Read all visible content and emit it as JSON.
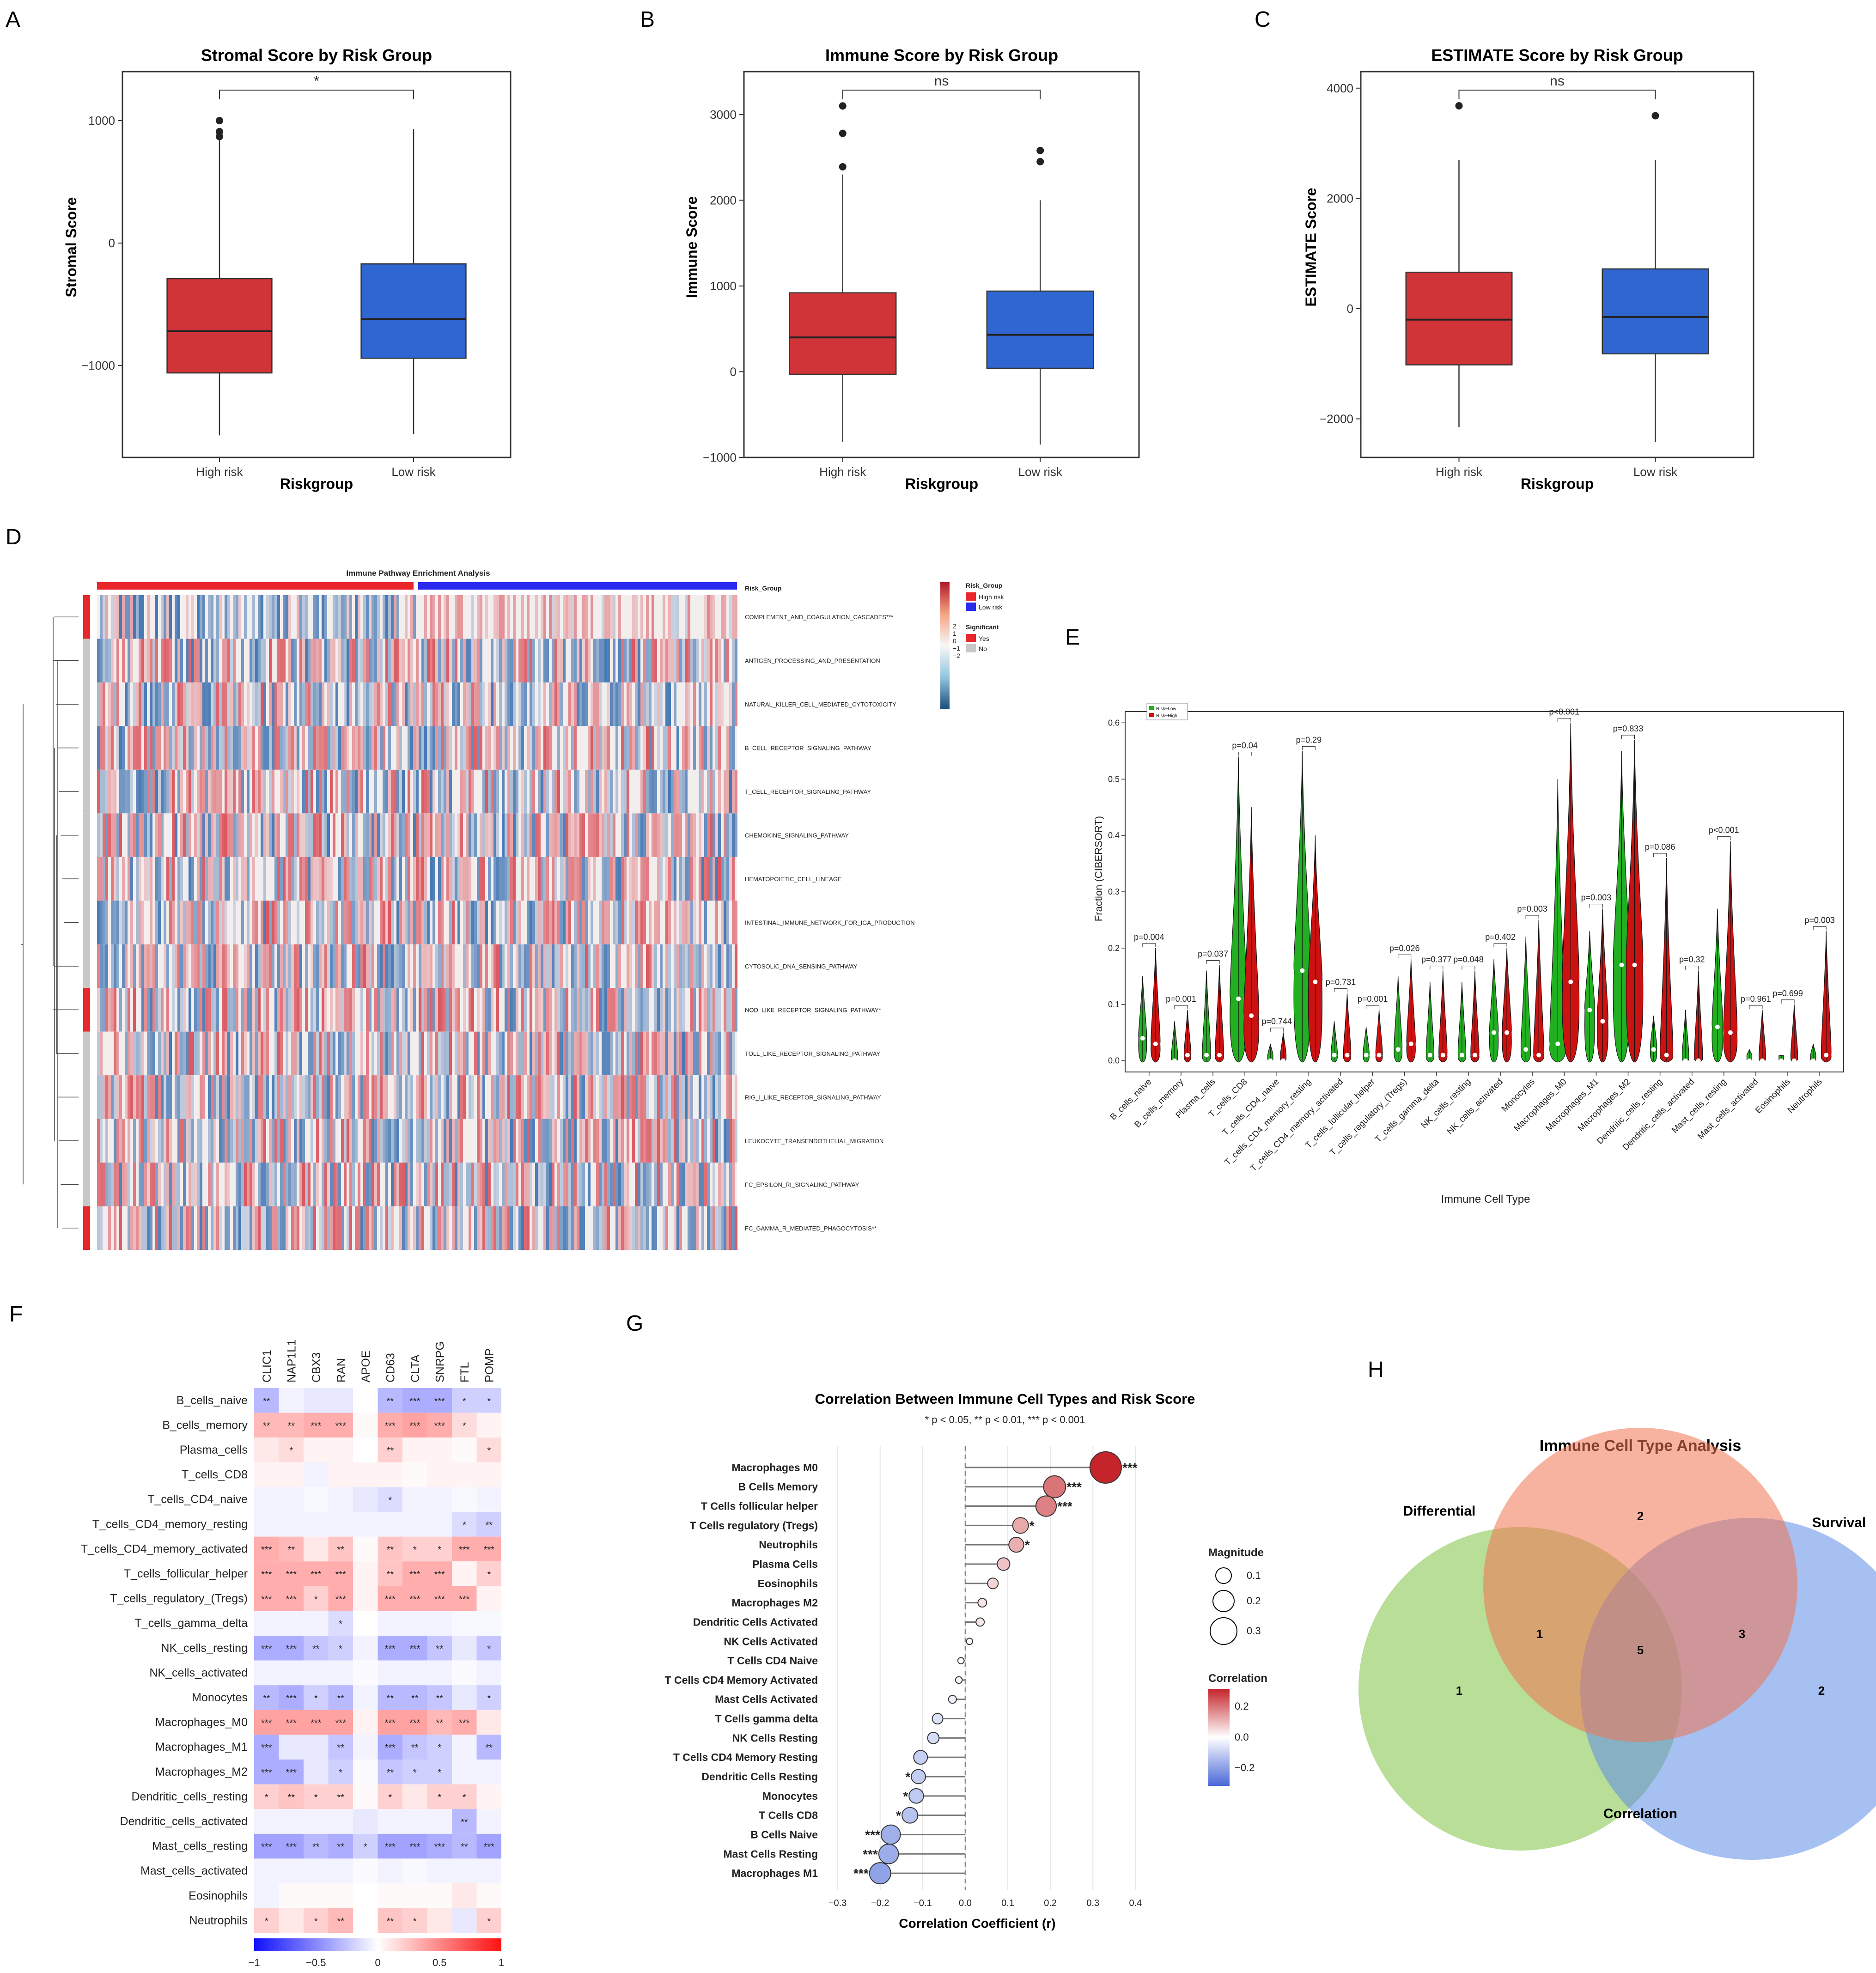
{
  "panel_letters": [
    "A",
    "B",
    "C",
    "D",
    "E",
    "F",
    "G",
    "H"
  ],
  "colors": {
    "high": "#d03438",
    "low": "#2f66d2",
    "green": "#22b022",
    "red": "#cc1111",
    "dark": "#222222"
  },
  "chart_data": [
    {
      "id": "A",
      "type": "box",
      "title": "Stromal Score by Risk Group",
      "xlabel": "Riskgroup",
      "ylabel": "Stromal Score",
      "ylim": [
        -1750,
        1400
      ],
      "yticks": [
        -1000,
        0,
        1000
      ],
      "yticklabels": [
        "−1000",
        "0",
        "1000"
      ],
      "categories": [
        "High risk",
        "Low risk"
      ],
      "boxes": [
        {
          "q1": -1060,
          "median": -720,
          "q3": -290,
          "lo": -1570,
          "hi": 920,
          "outliers": [
            1000,
            910,
            870
          ]
        },
        {
          "q1": -940,
          "median": -620,
          "q3": -170,
          "lo": -1560,
          "hi": 930,
          "outliers": []
        }
      ],
      "signif": "*"
    },
    {
      "id": "B",
      "type": "box",
      "title": "Immune Score by Risk Group",
      "xlabel": "Riskgroup",
      "ylabel": "Immune Score",
      "ylim": [
        -1000,
        3500
      ],
      "yticks": [
        -1000,
        0,
        1000,
        2000,
        3000
      ],
      "yticklabels": [
        "−1000",
        "0",
        "1000",
        "2000",
        "3000"
      ],
      "categories": [
        "High risk",
        "Low risk"
      ],
      "boxes": [
        {
          "q1": -30,
          "median": 400,
          "q3": 920,
          "lo": -820,
          "hi": 2300,
          "outliers": [
            3100,
            2780,
            2390
          ]
        },
        {
          "q1": 40,
          "median": 430,
          "q3": 940,
          "lo": -850,
          "hi": 2000,
          "outliers": [
            2580,
            2450
          ]
        }
      ],
      "signif": "ns"
    },
    {
      "id": "C",
      "type": "box",
      "title": "ESTIMATE Score by Risk Group",
      "xlabel": "Riskgroup",
      "ylabel": "ESTIMATE Score",
      "ylim": [
        -2700,
        4300
      ],
      "yticks": [
        -2000,
        0,
        2000,
        4000
      ],
      "yticklabels": [
        "−2000",
        "0",
        "2000",
        "4000"
      ],
      "categories": [
        "High risk",
        "Low risk"
      ],
      "boxes": [
        {
          "q1": -1020,
          "median": -200,
          "q3": 660,
          "lo": -2150,
          "hi": 2700,
          "outliers": [
            3680
          ]
        },
        {
          "q1": -820,
          "median": -150,
          "q3": 720,
          "lo": -2420,
          "hi": 2700,
          "outliers": [
            3500
          ]
        }
      ],
      "signif": "ns"
    },
    {
      "id": "D",
      "type": "heatmap",
      "title": "Immune Pathway Enrichment Analysis",
      "pathways": [
        "COMPLEMENT_AND_COAGULATION_CASCADES***",
        "ANTIGEN_PROCESSING_AND_PRESENTATION",
        "NATURAL_KILLER_CELL_MEDIATED_CYTOTOXICITY",
        "B_CELL_RECEPTOR_SIGNALING_PATHWAY",
        "T_CELL_RECEPTOR_SIGNALING_PATHWAY",
        "CHEMOKINE_SIGNALING_PATHWAY",
        "HEMATOPOIETIC_CELL_LINEAGE",
        "INTESTINAL_IMMUNE_NETWORK_FOR_IGA_PRODUCTION",
        "CYTOSOLIC_DNA_SENSING_PATHWAY",
        "NOD_LIKE_RECEPTOR_SIGNALING_PATHWAY*",
        "TOLL_LIKE_RECEPTOR_SIGNALING_PATHWAY",
        "RIG_I_LIKE_RECEPTOR_SIGNALING_PATHWAY",
        "LEUKOCYTE_TRANSENDOTHELIAL_MIGRATION",
        "FC_EPSILON_RI_SIGNALING_PATHWAY",
        "FC_GAMMA_R_MEDIATED_PHAGOCYTOSIS**"
      ],
      "significant": [
        true,
        false,
        false,
        false,
        false,
        false,
        false,
        false,
        false,
        true,
        false,
        false,
        false,
        false,
        true
      ],
      "annotation_label": "Risk_Group",
      "legend": {
        "risk_title": "Risk_Group",
        "risk_items": [
          "High risk",
          "Low risk"
        ],
        "scale_ticks": [
          "2",
          "1",
          "0",
          "−1",
          "−2"
        ],
        "sig_title": "Significant",
        "sig_items": [
          "Yes",
          "No"
        ]
      }
    },
    {
      "id": "E",
      "type": "violin",
      "xlabel": "Immune Cell Type",
      "ylabel": "Fraction (CIBERSORT)",
      "ylim": [
        -0.02,
        0.62
      ],
      "yticks": [
        0.0,
        0.1,
        0.2,
        0.3,
        0.4,
        0.5,
        0.6
      ],
      "yticklabels": [
        "0.0",
        "0.1",
        "0.2",
        "0.3",
        "0.4",
        "0.5",
        "0.6"
      ],
      "legend": [
        "Risk−Low",
        "Risk−High"
      ],
      "cells": [
        "B_cells_naive",
        "B_cells_memory",
        "Plasma_cells",
        "T_cells_CD8",
        "T_cells_CD4_naive",
        "T_cells_CD4_memory_resting",
        "T_cells_CD4_memory_activated",
        "T_cells_follicular_helper",
        "T_cells_regulatory_(Tregs)",
        "T_cells_gamma_delta",
        "NK_cells_resting",
        "NK_cells_activated",
        "Monocytes",
        "Macrophages_M0",
        "Macrophages_M1",
        "Macrophages_M2",
        "Dendritic_cells_resting",
        "Dendritic_cells_activated",
        "Mast_cells_resting",
        "Mast_cells_activated",
        "Eosinophils",
        "Neutrophils"
      ],
      "pvalues": [
        "p=0.004",
        "p=0.001",
        "p=0.037",
        "p=0.04",
        "p=0.744",
        "p=0.29",
        "p=0.731",
        "p=0.001",
        "p=0.026",
        "p=0.377",
        "p=0.048",
        "p=0.402",
        "p=0.003",
        "p<0.001",
        "p=0.003",
        "p=0.833",
        "p=0.086",
        "p=0.32",
        "p<0.001",
        "p=0.961",
        "p=0.699",
        "p=0.003"
      ],
      "low_max": [
        0.15,
        0.07,
        0.16,
        0.54,
        0.03,
        0.55,
        0.07,
        0.06,
        0.15,
        0.14,
        0.14,
        0.18,
        0.22,
        0.5,
        0.23,
        0.55,
        0.08,
        0.09,
        0.27,
        0.02,
        0.01,
        0.03
      ],
      "low_median": [
        0.04,
        0.0,
        0.01,
        0.11,
        0.0,
        0.16,
        0.01,
        0.01,
        0.02,
        0.01,
        0.01,
        0.05,
        0.02,
        0.03,
        0.09,
        0.17,
        0.02,
        0.0,
        0.06,
        0.0,
        0.0,
        0.0
      ],
      "high_max": [
        0.2,
        0.09,
        0.17,
        0.45,
        0.05,
        0.4,
        0.12,
        0.09,
        0.18,
        0.16,
        0.16,
        0.2,
        0.25,
        0.6,
        0.27,
        0.57,
        0.36,
        0.16,
        0.39,
        0.09,
        0.1,
        0.23
      ],
      "high_median": [
        0.03,
        0.01,
        0.01,
        0.08,
        0.0,
        0.14,
        0.01,
        0.01,
        0.03,
        0.01,
        0.01,
        0.05,
        0.01,
        0.14,
        0.07,
        0.17,
        0.01,
        0.0,
        0.05,
        0.0,
        0.0,
        0.01
      ]
    },
    {
      "id": "F",
      "type": "heatmap",
      "genes": [
        "CLIC1",
        "NAP1L1",
        "CBX3",
        "RAN",
        "APOE",
        "CD63",
        "CLTA",
        "SNRPG",
        "FTL",
        "POMP"
      ],
      "rows": [
        "B_cells_naive",
        "B_cells_memory",
        "Plasma_cells",
        "T_cells_CD8",
        "T_cells_CD4_naive",
        "T_cells_CD4_memory_resting",
        "T_cells_CD4_memory_activated",
        "T_cells_follicular_helper",
        "T_cells_regulatory_(Tregs)",
        "T_cells_gamma_delta",
        "NK_cells_resting",
        "NK_cells_activated",
        "Monocytes",
        "Macrophages_M0",
        "Macrophages_M1",
        "Macrophages_M2",
        "Dendritic_cells_resting",
        "Dendritic_cells_activated",
        "Mast_cells_resting",
        "Mast_cells_activated",
        "Eosinophils",
        "Neutrophils"
      ],
      "values": [
        [
          -0.3,
          -0.05,
          -0.1,
          -0.1,
          0.0,
          -0.3,
          -0.35,
          -0.35,
          -0.2,
          -0.2
        ],
        [
          0.3,
          0.3,
          0.35,
          0.35,
          0.02,
          0.35,
          0.4,
          0.35,
          0.15,
          0.05
        ],
        [
          0.1,
          0.15,
          0.05,
          0.05,
          0.0,
          0.2,
          0.05,
          0.05,
          0.02,
          0.15
        ],
        [
          0.05,
          0.05,
          -0.05,
          0.05,
          0.05,
          0.05,
          0.02,
          0.05,
          0.05,
          0.05
        ],
        [
          -0.05,
          -0.05,
          -0.03,
          -0.05,
          -0.1,
          -0.15,
          -0.05,
          -0.05,
          -0.03,
          -0.05
        ],
        [
          -0.05,
          -0.05,
          -0.05,
          -0.05,
          -0.05,
          -0.05,
          -0.05,
          -0.05,
          -0.15,
          -0.2
        ],
        [
          0.35,
          0.3,
          0.1,
          0.25,
          0.02,
          0.25,
          0.2,
          0.2,
          0.35,
          0.35
        ],
        [
          0.35,
          0.35,
          0.35,
          0.35,
          0.05,
          0.25,
          0.35,
          0.35,
          0.05,
          0.2
        ],
        [
          0.35,
          0.35,
          0.2,
          0.35,
          0.05,
          0.35,
          0.35,
          0.35,
          0.35,
          0.05
        ],
        [
          -0.05,
          -0.05,
          -0.05,
          -0.15,
          0.0,
          -0.05,
          -0.05,
          -0.05,
          -0.03,
          -0.03
        ],
        [
          -0.35,
          -0.35,
          -0.25,
          -0.2,
          -0.05,
          -0.35,
          -0.35,
          -0.25,
          -0.1,
          -0.25
        ],
        [
          -0.05,
          -0.05,
          -0.05,
          -0.05,
          -0.02,
          -0.05,
          -0.05,
          -0.05,
          -0.02,
          -0.05
        ],
        [
          -0.3,
          -0.35,
          -0.2,
          -0.3,
          -0.05,
          -0.3,
          -0.3,
          -0.25,
          -0.1,
          -0.2
        ],
        [
          0.4,
          0.4,
          0.4,
          0.4,
          0.05,
          0.4,
          0.4,
          0.3,
          0.35,
          0.1
        ],
        [
          -0.35,
          -0.1,
          -0.1,
          -0.25,
          -0.05,
          -0.35,
          -0.25,
          -0.2,
          -0.05,
          -0.3
        ],
        [
          -0.35,
          -0.35,
          -0.1,
          -0.2,
          -0.02,
          -0.25,
          -0.2,
          -0.2,
          -0.05,
          -0.05
        ],
        [
          0.2,
          0.25,
          0.2,
          0.2,
          0.02,
          0.2,
          0.1,
          0.2,
          0.2,
          0.05
        ],
        [
          -0.05,
          -0.05,
          -0.05,
          -0.05,
          -0.1,
          -0.05,
          -0.05,
          -0.05,
          -0.3,
          -0.05
        ],
        [
          -0.4,
          -0.4,
          -0.3,
          -0.35,
          -0.2,
          -0.4,
          -0.4,
          -0.35,
          -0.3,
          -0.4
        ],
        [
          -0.05,
          -0.05,
          -0.05,
          -0.05,
          -0.02,
          -0.05,
          -0.03,
          -0.05,
          -0.05,
          -0.05
        ],
        [
          -0.05,
          0.02,
          0.02,
          0.02,
          0.0,
          0.02,
          0.02,
          0.02,
          0.1,
          0.02
        ],
        [
          0.2,
          0.1,
          0.2,
          0.3,
          0.0,
          0.25,
          0.2,
          0.1,
          -0.1,
          0.2
        ]
      ],
      "stars": [
        [
          "**",
          "",
          "",
          "",
          "",
          "**",
          "***",
          "***",
          "*",
          "*"
        ],
        [
          "**",
          "**",
          "***",
          "***",
          "",
          "***",
          "***",
          "***",
          "*",
          ""
        ],
        [
          "",
          "*",
          "",
          "",
          "",
          "**",
          "",
          "",
          "",
          "*"
        ],
        [
          "",
          "",
          "",
          "",
          "",
          "",
          "",
          "",
          "",
          ""
        ],
        [
          "",
          "",
          "",
          "",
          "",
          "*",
          "",
          "",
          "",
          ""
        ],
        [
          "",
          "",
          "",
          "",
          "",
          "",
          "",
          "",
          "*",
          "**"
        ],
        [
          "***",
          "**",
          "",
          "**",
          "",
          "**",
          "*",
          "*",
          "***",
          "***"
        ],
        [
          "***",
          "***",
          "***",
          "***",
          "",
          "**",
          "***",
          "***",
          "",
          "*"
        ],
        [
          "***",
          "***",
          "*",
          "***",
          "",
          "***",
          "***",
          "***",
          "***",
          ""
        ],
        [
          "",
          "",
          "",
          "*",
          "",
          "",
          "",
          "",
          "",
          ""
        ],
        [
          "***",
          "***",
          "**",
          "*",
          "",
          "***",
          "***",
          "**",
          "",
          "*"
        ],
        [
          "",
          "",
          "",
          "",
          "",
          "",
          "",
          "",
          "",
          ""
        ],
        [
          "**",
          "***",
          "*",
          "**",
          "",
          "**",
          "**",
          "**",
          "",
          "*"
        ],
        [
          "***",
          "***",
          "***",
          "***",
          "",
          "***",
          "***",
          "**",
          "***",
          ""
        ],
        [
          "***",
          "",
          "",
          "**",
          "",
          "***",
          "**",
          "*",
          "",
          "**"
        ],
        [
          "***",
          "***",
          "",
          "*",
          "",
          "**",
          "*",
          "*",
          "",
          ""
        ],
        [
          "*",
          "**",
          "*",
          "**",
          "",
          "*",
          "",
          "*",
          "*",
          ""
        ],
        [
          "",
          "",
          "",
          "",
          "",
          "",
          "",
          "",
          "**",
          ""
        ],
        [
          "***",
          "***",
          "**",
          "**",
          "*",
          "***",
          "***",
          "***",
          "**",
          "***"
        ],
        [
          "",
          "",
          "",
          "",
          "",
          "",
          "",
          "",
          "",
          ""
        ],
        [
          "",
          "",
          "",
          "",
          "",
          "",
          "",
          "",
          "",
          ""
        ],
        [
          "*",
          "",
          "*",
          "**",
          "",
          "**",
          "*",
          "",
          "",
          "*"
        ]
      ],
      "colorbar_ticks": [
        "−1",
        "−0.5",
        "0",
        "0.5",
        "1"
      ]
    },
    {
      "id": "G",
      "type": "lollipop",
      "title": "Correlation Between Immune Cell Types and Risk Score",
      "subtitle": "* p < 0.05, ** p < 0.01, *** p < 0.001",
      "xlabel": "Correlation Coefficient (r)",
      "xlim": [
        -0.33,
        0.43
      ],
      "xticks": [
        -0.3,
        -0.2,
        -0.1,
        0.0,
        0.1,
        0.2,
        0.3,
        0.4
      ],
      "xticklabels": [
        "−0.3",
        "−0.2",
        "−0.1",
        "0.0",
        "0.1",
        "0.2",
        "0.3",
        "0.4"
      ],
      "cells": [
        "Macrophages M0",
        "B Cells Memory",
        "T Cells follicular helper",
        "T Cells regulatory (Tregs)",
        "Neutrophils",
        "Plasma Cells",
        "Eosinophils",
        "Macrophages M2",
        "Dendritic Cells Activated",
        "NK Cells Activated",
        "T Cells CD4 Naive",
        "T Cells CD4 Memory Activated",
        "Mast Cells Activated",
        "T Cells gamma delta",
        "NK Cells Resting",
        "T Cells CD4 Memory Resting",
        "Dendritic Cells Resting",
        "Monocytes",
        "T Cells CD8",
        "B Cells Naive",
        "Mast Cells Resting",
        "Macrophages M1"
      ],
      "r": [
        0.33,
        0.21,
        0.19,
        0.13,
        0.12,
        0.09,
        0.065,
        0.04,
        0.035,
        0.01,
        -0.01,
        -0.015,
        -0.03,
        -0.065,
        -0.075,
        -0.105,
        -0.11,
        -0.115,
        -0.13,
        -0.175,
        -0.18,
        -0.2
      ],
      "stars": [
        "***",
        "***",
        "***",
        "*",
        "*",
        "",
        "",
        "",
        "",
        "",
        "",
        "",
        "",
        "",
        "",
        "",
        "*",
        "*",
        "*",
        "***",
        "***",
        "***"
      ],
      "size_legend": {
        "title": "Magnitude",
        "values": [
          "0.1",
          "0.2",
          "0.3"
        ]
      },
      "color_legend": {
        "title": "Correlation",
        "ticks": [
          "0.2",
          "0.0",
          "−0.2"
        ]
      }
    },
    {
      "id": "H",
      "type": "venn",
      "title": "Immune Cell Type Analysis",
      "sets": [
        "Differential",
        "Survival",
        "Correlation"
      ],
      "regions": {
        "differential_only": "1",
        "top_only": "2",
        "survival_only": "2",
        "diff_top": "1",
        "all_three": "5",
        "top_survival": "3"
      }
    }
  ]
}
